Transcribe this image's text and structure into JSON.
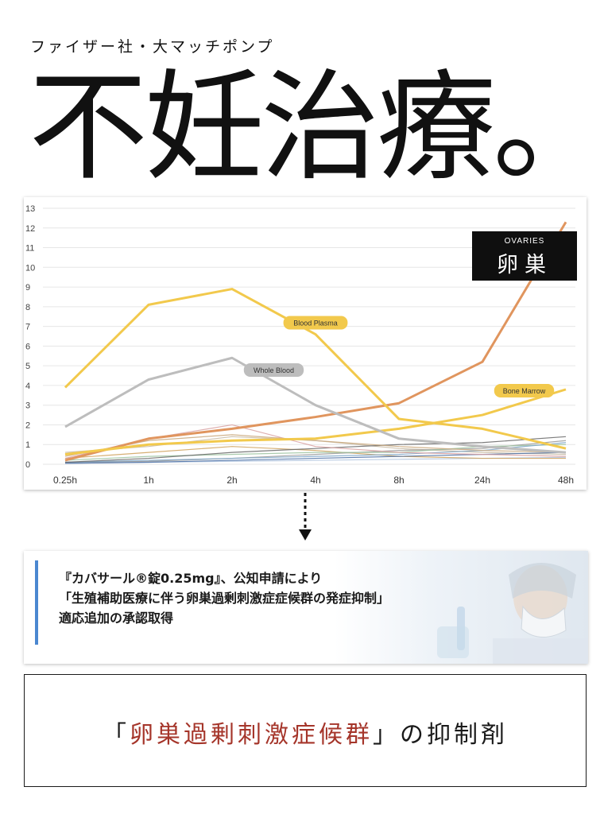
{
  "header": {
    "subtitle": "ファイザー社・大マッチポンプ",
    "title": "不妊治療。"
  },
  "chart_badge": {
    "en": "OVARIES",
    "jp": "卵巣"
  },
  "chart_data": {
    "type": "line",
    "categories": [
      "0.25h",
      "1h",
      "2h",
      "4h",
      "8h",
      "24h",
      "48h"
    ],
    "ylim": [
      0,
      13
    ],
    "yticks": [
      0,
      1,
      2,
      3,
      4,
      5,
      6,
      7,
      8,
      9,
      10,
      11,
      12,
      13
    ],
    "grid": true,
    "series": [
      {
        "name": "Blood Plasma",
        "color": "#f2c94c",
        "values": [
          3.9,
          8.1,
          8.9,
          6.6,
          2.3,
          1.8,
          0.8
        ],
        "label_at": 3
      },
      {
        "name": "Whole Blood",
        "color": "#bdbdbd",
        "values": [
          1.9,
          4.3,
          5.4,
          3.0,
          1.3,
          0.9,
          0.6
        ],
        "label_at": 2.5
      },
      {
        "name": "Bone Marrow",
        "color": "#f2c94c",
        "values": [
          0.5,
          1.0,
          1.2,
          1.3,
          1.8,
          2.5,
          3.8
        ],
        "label_at": 5.5
      },
      {
        "name": "",
        "color": "#e0955e",
        "values": [
          0.2,
          1.3,
          1.8,
          2.4,
          3.1,
          5.2,
          12.3
        ]
      },
      {
        "name": "",
        "color": "#c9a77a",
        "values": [
          0.4,
          1.2,
          1.5,
          1.2,
          0.9,
          0.7,
          0.6
        ]
      },
      {
        "name": "",
        "color": "#d8a0a0",
        "values": [
          0.3,
          1.3,
          2.0,
          0.9,
          0.6,
          0.5,
          0.4
        ]
      },
      {
        "name": "",
        "color": "#666666",
        "values": [
          0.1,
          0.3,
          0.6,
          0.8,
          1.0,
          1.1,
          1.4
        ]
      },
      {
        "name": "",
        "color": "#7ea6c8",
        "values": [
          0.1,
          0.2,
          0.3,
          0.4,
          0.5,
          0.7,
          1.1
        ]
      },
      {
        "name": "",
        "color": "#9cc3a0",
        "values": [
          0.2,
          0.4,
          0.5,
          0.6,
          0.6,
          0.9,
          1.0
        ]
      },
      {
        "name": "",
        "color": "#4a6fa5",
        "values": [
          0.05,
          0.1,
          0.2,
          0.3,
          0.4,
          0.5,
          0.6
        ]
      },
      {
        "name": "",
        "color": "#999999",
        "values": [
          0.1,
          0.15,
          0.3,
          0.5,
          0.7,
          0.8,
          1.2
        ]
      },
      {
        "name": "",
        "color": "#cfa15a",
        "values": [
          0.3,
          0.6,
          0.9,
          0.7,
          0.4,
          0.3,
          0.3
        ]
      },
      {
        "name": "",
        "color": "#b0c4de",
        "values": [
          0.05,
          0.1,
          0.15,
          0.2,
          0.25,
          0.3,
          0.35
        ]
      },
      {
        "name": "",
        "color": "#c7b9a0",
        "values": [
          0.6,
          0.9,
          1.4,
          1.2,
          0.8,
          0.6,
          0.5
        ]
      }
    ]
  },
  "announcement": {
    "line1": "『カバサール®錠0.25mg』、公知申請により",
    "line2": "「生殖補助医療に伴う卵巣過剰刺激症症候群の発症抑制」",
    "line3": "適応追加の承認取得"
  },
  "footer": {
    "open": "「",
    "highlight": "卵巣過剰刺激症候群",
    "rest": "」の抑制剤"
  }
}
